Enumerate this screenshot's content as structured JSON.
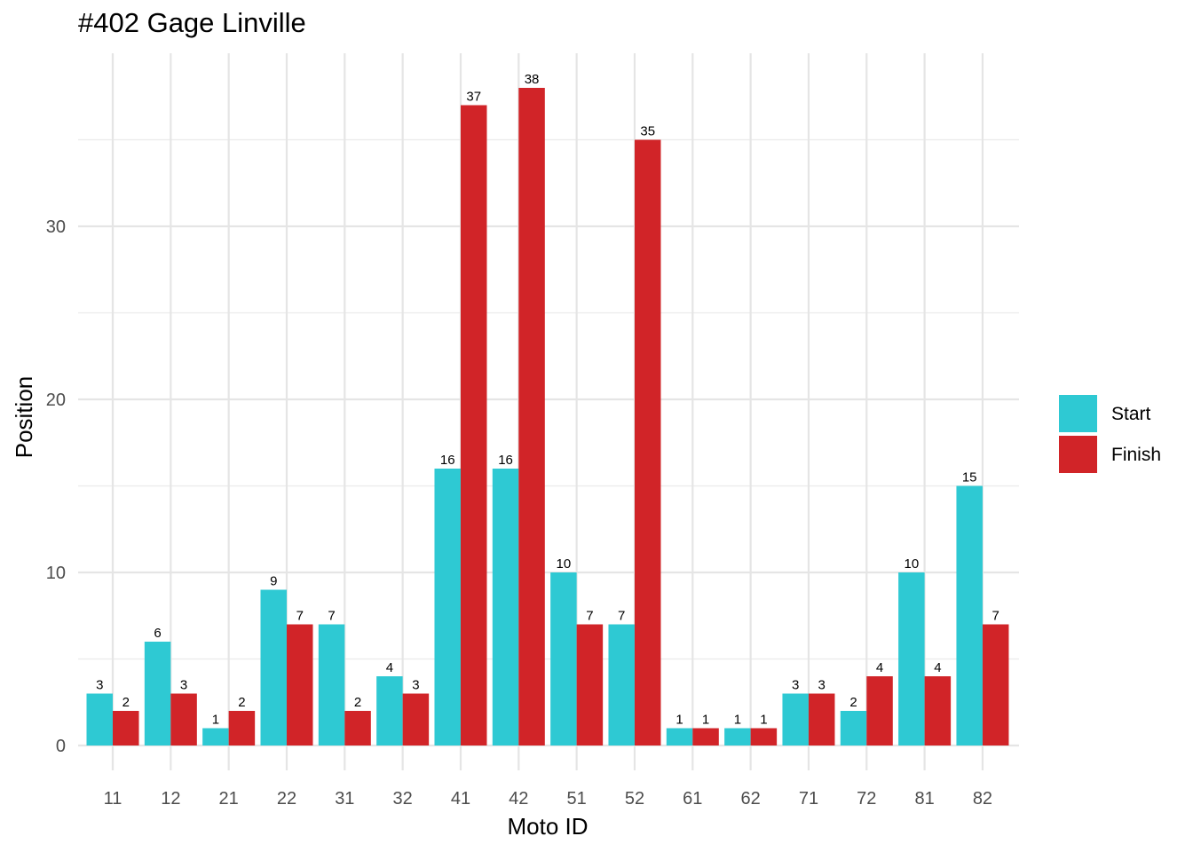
{
  "chart_data": {
    "type": "bar",
    "title": "#402 Gage Linville",
    "xlabel": "Moto ID",
    "ylabel": "Position",
    "categories": [
      "11",
      "12",
      "21",
      "22",
      "31",
      "32",
      "41",
      "42",
      "51",
      "52",
      "61",
      "62",
      "71",
      "72",
      "81",
      "82"
    ],
    "series": [
      {
        "name": "Start",
        "color": "#2ec9d3",
        "values": [
          3,
          6,
          1,
          9,
          7,
          4,
          16,
          16,
          10,
          7,
          1,
          1,
          3,
          2,
          10,
          15
        ]
      },
      {
        "name": "Finish",
        "color": "#d12428",
        "values": [
          2,
          3,
          2,
          7,
          2,
          3,
          37,
          38,
          7,
          35,
          1,
          1,
          3,
          4,
          4,
          7
        ]
      }
    ],
    "ylim": [
      0,
      39
    ],
    "yticks": [
      0,
      10,
      20,
      30
    ],
    "grid": true,
    "legend_position": "right"
  }
}
